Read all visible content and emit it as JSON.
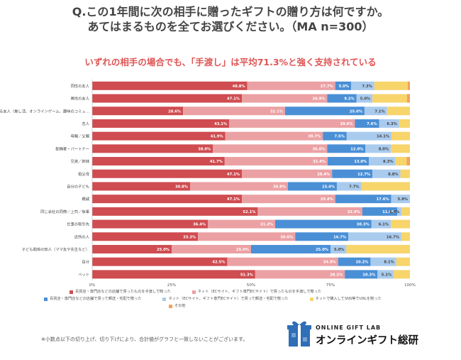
{
  "title_line1": "Q.この1年間に次の相手に贈ったギフトの贈り方は何ですか。",
  "title_line2": "あてはまるものを全てお選びください。（MA n=300）",
  "subtitle": "いずれの相手の場合でも、「手渡し」は平均71.3%と強く支持されている",
  "footnote": "※小数点以下の切り上げ、切り下げにより、合計値がグラフと一致しないことがございます。",
  "logo": {
    "en": "ONLINE GIFT LAB",
    "ja": "オンラインギフト総研"
  },
  "colors": {
    "store_hand": "#cf4c50",
    "online_hand": "#eba1a4",
    "store_ship": "#4a8fd6",
    "online_ship": "#a9cbee",
    "sns_url": "#f7d56b",
    "other": "#f2a25a"
  },
  "legend": [
    {
      "key": "store_hand",
      "label": "百貨店・専門店などの店舗で買ったものを手渡しで贈った"
    },
    {
      "key": "online_hand",
      "label": "ネット（ECサイト、ギフト専門ECサイト）で買ったものを手渡しで贈った"
    },
    {
      "key": "store_ship",
      "label": "百貨店・専門店などの店舗で買って郵送・宅配で贈った"
    },
    {
      "key": "online_ship",
      "label": "ネット（ECサイト、ギフト専門ECサイト）で買って郵送・宅配で贈った"
    },
    {
      "key": "sns_url",
      "label": "ネットで購入してSNS等でURLを贈った"
    },
    {
      "key": "other",
      "label": "その他"
    }
  ],
  "chart_data": {
    "type": "bar",
    "orientation": "horizontal",
    "stacked": true,
    "xlim": [
      0,
      100
    ],
    "xticks": [
      "0%",
      "25%",
      "50%",
      "75%",
      "100%"
    ],
    "grid": false,
    "legend_position": "bottom",
    "categories": [
      "同性の友人",
      "異性の友人",
      "SNS上でだけ知っている友人（推し活、オンラインゲーム、趣味のコミュ…",
      "恋人",
      "母親／父親",
      "配偶者・パートナー",
      "兄弟／姉妹",
      "祖父母",
      "自分の子ども",
      "親戚",
      "同じ会社の同僚／上司／後輩",
      "仕事の取引先",
      "近所の人",
      "子ども関係の知人（ママ友や先生など）",
      "自分",
      "ペット"
    ],
    "series": [
      {
        "key": "store_hand",
        "name": "百貨店・専門店などの店舗で買ったものを手渡しで贈った",
        "values": [
          48.8,
          47.1,
          28.6,
          43.1,
          41.9,
          38.0,
          41.7,
          47.1,
          30.8,
          47.1,
          52.1,
          36.4,
          33.3,
          25.0,
          42.5,
          51.3
        ]
      },
      {
        "key": "online_hand",
        "name": "ネット（ECサイト、ギフト専門ECサイト）で買ったものを手渡しで贈った",
        "values": [
          27.7,
          26.9,
          32.1,
          39.6,
          30.7,
          36.0,
          32.4,
          28.4,
          30.8,
          29.4,
          32.9,
          21.2,
          30.6,
          25.0,
          34.9,
          28.2
        ]
      },
      {
        "key": "store_ship",
        "name": "百貨店・専門店などの店舗で買って郵送・宅配で贈った",
        "values": [
          5.0,
          9.2,
          25.0,
          7.6,
          7.5,
          12.0,
          13.0,
          12.7,
          15.4,
          17.6,
          11.0,
          30.3,
          16.7,
          25.0,
          10.2,
          10.3
        ]
      },
      {
        "key": "online_ship",
        "name": "ネット（ECサイト、ギフト専門ECサイト）で買って郵送・宅配で贈った",
        "values": [
          7.3,
          5.0,
          7.1,
          6.3,
          14.1,
          8.0,
          8.3,
          8.8,
          7.7,
          5.9,
          1.4,
          6.1,
          16.7,
          5.0,
          8.1,
          5.1
        ]
      },
      {
        "key": "sns_url",
        "name": "ネットで購入してSNS等でURLを贈った",
        "values": [
          10.5,
          10.9,
          7.2,
          3.4,
          5.8,
          6.0,
          3.6,
          3.0,
          15.3,
          0.0,
          2.6,
          6.0,
          2.7,
          20.0,
          4.3,
          5.1
        ]
      },
      {
        "key": "other",
        "name": "その他",
        "values": [
          0.7,
          0.9,
          0.0,
          0.0,
          0.0,
          0.0,
          1.0,
          0.0,
          0.0,
          0.0,
          0.0,
          0.0,
          0.0,
          0.0,
          0.0,
          0.0
        ]
      }
    ],
    "data_labels": [
      [
        "48.8%",
        "27.7%",
        "5.0%",
        "7.3%",
        "",
        ""
      ],
      [
        "47.1%",
        "26.9%",
        "9.2%",
        "5.0%",
        "",
        ""
      ],
      [
        "28.6%",
        "32.1%",
        "25.0%",
        "7.1%",
        "",
        ""
      ],
      [
        "43.1%",
        "39.6%",
        "7.6%",
        "6.3%",
        "",
        ""
      ],
      [
        "41.9%",
        "30.7%",
        "7.5%",
        "14.1%",
        "",
        ""
      ],
      [
        "38.0%",
        "36.0%",
        "12.0%",
        "8.0%",
        "",
        ""
      ],
      [
        "41.7%",
        "32.4%",
        "13.0%",
        "8.3%",
        "",
        ""
      ],
      [
        "47.1%",
        "28.4%",
        "12.7%",
        "8.8%",
        "",
        ""
      ],
      [
        "30.8%",
        "30.8%",
        "15.4%",
        "7.7%",
        "",
        ""
      ],
      [
        "47.1%",
        "29.4%",
        "17.6%",
        "5.9%",
        "",
        ""
      ],
      [
        "52.1%",
        "32.9%",
        "11.0%",
        "1.4%",
        "",
        ""
      ],
      [
        "36.4%",
        "21.2%",
        "30.3%",
        "6.1%",
        "",
        ""
      ],
      [
        "33.3%",
        "30.6%",
        "16.7%",
        "16.7%",
        "",
        ""
      ],
      [
        "25.0%",
        "25.0%",
        "25.0%",
        "5.0%",
        "",
        ""
      ],
      [
        "42.5%",
        "34.9%",
        "10.2%",
        "8.1%",
        "",
        ""
      ],
      [
        "51.3%",
        "28.2%",
        "10.3%",
        "5.1%",
        "",
        ""
      ]
    ]
  }
}
